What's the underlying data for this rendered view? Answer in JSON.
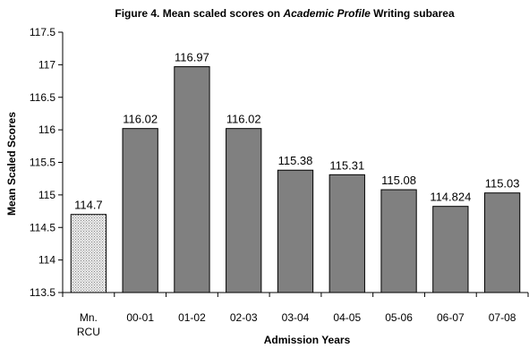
{
  "chart_data": {
    "type": "bar",
    "title": {
      "prefix": "Figure 4. Mean scaled scores on ",
      "italic": "Academic Profile",
      "suffix": " Writing subarea"
    },
    "xlabel": "Admission Years",
    "ylabel": "Mean Scaled Scores",
    "ylim": [
      113.5,
      117.5
    ],
    "yticks": [
      "113.5",
      "114",
      "114.5",
      "115",
      "115.5",
      "116",
      "116.5",
      "117",
      "117.5"
    ],
    "categories": [
      {
        "lines": [
          "Mn.",
          "RCU"
        ]
      },
      {
        "lines": [
          "00-01"
        ]
      },
      {
        "lines": [
          "01-02"
        ]
      },
      {
        "lines": [
          "02-03"
        ]
      },
      {
        "lines": [
          "03-04"
        ]
      },
      {
        "lines": [
          "04-05"
        ]
      },
      {
        "lines": [
          "05-06"
        ]
      },
      {
        "lines": [
          "06-07"
        ]
      },
      {
        "lines": [
          "07-08"
        ]
      }
    ],
    "values": [
      114.7,
      116.02,
      116.97,
      116.02,
      115.38,
      115.31,
      115.08,
      114.824,
      115.03
    ],
    "value_labels": [
      "114.7",
      "116.02",
      "116.97",
      "116.02",
      "115.38",
      "115.31",
      "115.08",
      "114.824",
      "115.03"
    ],
    "fills": [
      "dotted",
      "solid",
      "solid",
      "solid",
      "solid",
      "solid",
      "solid",
      "solid",
      "solid"
    ],
    "colors": {
      "bar": "#808080",
      "dotted_bar": "#e4e4e4",
      "axis": "#000000"
    },
    "grid": false,
    "legend": "none"
  }
}
